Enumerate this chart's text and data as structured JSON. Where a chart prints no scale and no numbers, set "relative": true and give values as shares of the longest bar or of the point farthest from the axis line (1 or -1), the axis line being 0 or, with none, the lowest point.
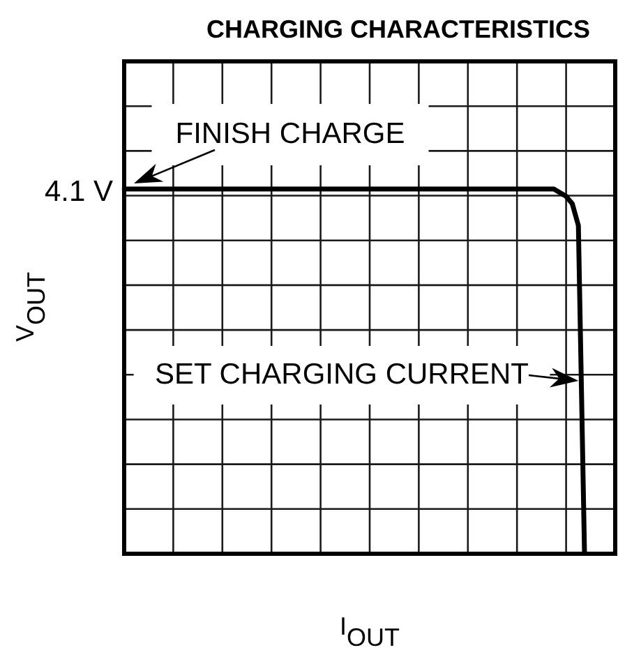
{
  "chart_data": {
    "type": "line",
    "title": "CHARGING CHARACTERISTICS",
    "xlabel": "I$_{OUT}$",
    "ylabel": "V$_{OUT}$",
    "relative": true,
    "categories": [
      null,
      null,
      null,
      null,
      null,
      null,
      null,
      null,
      null,
      null,
      null,
      null,
      null,
      null,
      null,
      null,
      null,
      null,
      null,
      null,
      null,
      null,
      null,
      null,
      null,
      null,
      null,
      null,
      null,
      null,
      null,
      null,
      null,
      null,
      null,
      null,
      null,
      null,
      null,
      null,
      null,
      null,
      null,
      null,
      null,
      null,
      null,
      null,
      null,
      null,
      null,
      null,
      null,
      null,
      null,
      null,
      null,
      null,
      null,
      null,
      null,
      null,
      null,
      null,
      null,
      null,
      null,
      null,
      null,
      null,
      null,
      null,
      null,
      null,
      null,
      null,
      null,
      null,
      null,
      null,
      null
    ],
    "values": [
      1,
      1,
      1,
      1,
      1,
      1,
      1,
      1,
      1,
      1,
      1,
      1,
      1,
      1,
      1,
      1,
      1,
      1,
      1,
      1,
      1,
      1,
      1,
      1,
      1,
      1,
      1,
      1,
      1,
      1,
      1,
      1,
      1,
      1,
      1,
      1,
      1,
      1,
      1,
      1,
      1,
      1,
      1,
      1,
      1,
      1,
      1,
      1,
      1,
      1,
      1,
      1,
      1,
      1,
      1,
      1,
      1,
      1,
      1,
      1,
      1,
      1,
      1,
      1,
      1,
      1,
      1,
      1,
      1,
      1,
      1,
      0.99,
      0.98,
      0.96,
      0.9,
      0,
      null,
      null,
      null,
      null,
      null
    ],
    "color": "#000000",
    "annotations": [
      "4.1 V",
      {
        "text": "FINISH CHARGE",
        "y": 1
      },
      "SET CHARGING CURRENT"
    ],
    "grid": true,
    "legend": false,
    "tick_labels": false,
    "marker": "none",
    "line_style": "solid"
  }
}
